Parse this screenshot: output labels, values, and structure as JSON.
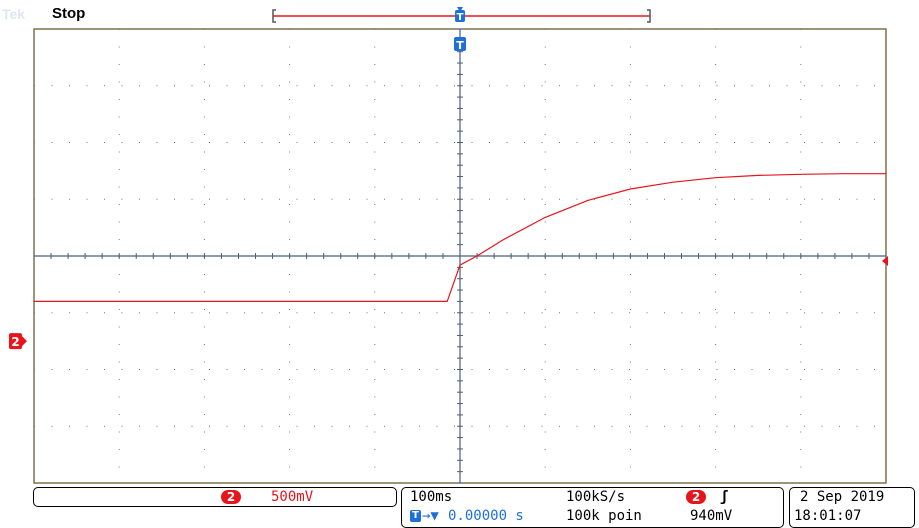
{
  "status": {
    "brand": "Tek",
    "run_state": "Stop"
  },
  "channel": {
    "number": "2",
    "scale": "500mV",
    "marker": "2"
  },
  "trigger": {
    "marker": "T",
    "channel": "2",
    "slope_symbol": "ʃ",
    "level": "940mV"
  },
  "timebase": {
    "time_per_div": "100ms",
    "sample_rate": "100kS/s",
    "position_prefix": "→▼",
    "position": "0.00000 s",
    "record_length": "100k poin"
  },
  "datetime": {
    "date": "2 Sep  2019",
    "time": "18:01:07"
  },
  "colors": {
    "channel2": "#e8141c",
    "trigger": "#1e6fd9",
    "grid": "#4a5f7a"
  },
  "chart_data": {
    "type": "line",
    "title": "",
    "xlabel": "",
    "ylabel": "",
    "x_unit": "s",
    "y_unit": "V",
    "xlim": [
      -0.5,
      0.5
    ],
    "ylim": [
      -1.5,
      2.5
    ],
    "grid": true,
    "series": [
      {
        "x": [
          -0.5,
          -0.45,
          -0.4,
          -0.3,
          -0.2,
          -0.1,
          -0.015,
          0.0,
          0.02,
          0.05,
          0.1,
          0.15,
          0.2,
          0.25,
          0.3,
          0.35,
          0.4,
          0.45,
          0.5
        ],
        "values": [
          0.1,
          0.1,
          0.1,
          0.1,
          0.1,
          0.1,
          0.1,
          0.42,
          0.5,
          0.64,
          0.84,
          0.99,
          1.09,
          1.15,
          1.19,
          1.21,
          1.22,
          1.225,
          1.225
        ]
      }
    ]
  }
}
